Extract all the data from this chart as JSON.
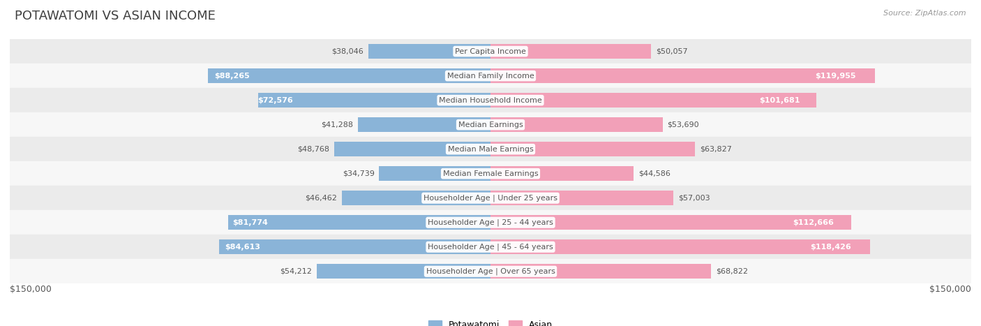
{
  "title": "POTAWATOMI VS ASIAN INCOME",
  "source": "Source: ZipAtlas.com",
  "categories": [
    "Per Capita Income",
    "Median Family Income",
    "Median Household Income",
    "Median Earnings",
    "Median Male Earnings",
    "Median Female Earnings",
    "Householder Age | Under 25 years",
    "Householder Age | 25 - 44 years",
    "Householder Age | 45 - 64 years",
    "Householder Age | Over 65 years"
  ],
  "potawatomi_values": [
    38046,
    88265,
    72576,
    41288,
    48768,
    34739,
    46462,
    81774,
    84613,
    54212
  ],
  "asian_values": [
    50057,
    119955,
    101681,
    53690,
    63827,
    44586,
    57003,
    112666,
    118426,
    68822
  ],
  "potawatomi_labels": [
    "$38,046",
    "$88,265",
    "$72,576",
    "$41,288",
    "$48,768",
    "$34,739",
    "$46,462",
    "$81,774",
    "$84,613",
    "$54,212"
  ],
  "asian_labels": [
    "$50,057",
    "$119,955",
    "$101,681",
    "$53,690",
    "$63,827",
    "$44,586",
    "$57,003",
    "$112,666",
    "$118,426",
    "$68,822"
  ],
  "asian_labels_white": [
    false,
    true,
    true,
    false,
    false,
    false,
    false,
    true,
    true,
    false
  ],
  "potawatomi_labels_white": [
    false,
    true,
    true,
    false,
    false,
    false,
    false,
    true,
    true,
    false
  ],
  "max_value": 150000,
  "potawatomi_color": "#8ab4d8",
  "asian_color": "#f2a0b8",
  "background_color": "#ffffff",
  "row_bg_even": "#ebebeb",
  "row_bg_odd": "#f7f7f7",
  "label_color_dark": "#555555",
  "label_color_white": "#ffffff",
  "title_color": "#404040",
  "source_color": "#999999",
  "title_fontsize": 13,
  "label_fontsize": 8,
  "category_fontsize": 8,
  "axis_label_fontsize": 9,
  "legend_fontsize": 9,
  "bar_height": 0.6,
  "x_label_left": "$150,000",
  "x_label_right": "$150,000"
}
